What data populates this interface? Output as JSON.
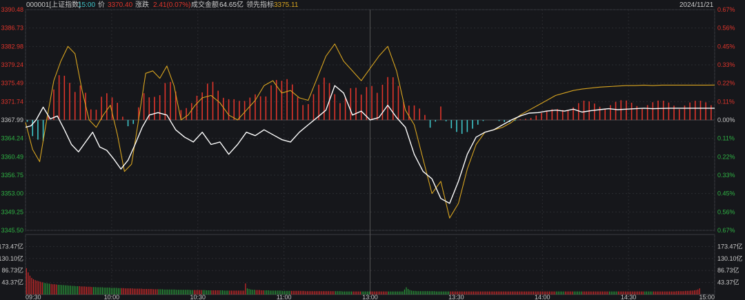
{
  "header": {
    "code_name": "000001[上证指数]",
    "time": "15:00",
    "price_label": "价",
    "price": "3370.40",
    "change_label": "涨跌",
    "change": "2.41(0.07%)",
    "turnover_label": "成交金额",
    "turnover": "64.65亿",
    "lead_label": "领先指标",
    "lead": "3375.11",
    "date": "2024/11/21"
  },
  "colors": {
    "background": "#16171b",
    "up": "#e0352b",
    "down": "#3fc6ca",
    "price_line": "#ffffff",
    "lead_line": "#d9a520",
    "volume_up": "#d62a2a",
    "volume_down": "#2a9a3a"
  },
  "chart_data": {
    "type": "line",
    "title": "000001[上证指数]",
    "prev_close": 3367.99,
    "price_ticks": [
      "3390.48",
      "3386.73",
      "3382.98",
      "3379.24",
      "3375.49",
      "3371.74",
      "3367.99",
      "3364.24",
      "3360.49",
      "3356.75",
      "3353.00",
      "3349.25",
      "3345.50"
    ],
    "pct_ticks": [
      "0.67%",
      "0.56%",
      "0.45%",
      "0.33%",
      "0.22%",
      "0.11%",
      "0.00%",
      "0.11%",
      "0.22%",
      "0.33%",
      "0.45%",
      "0.56%",
      "0.67%"
    ],
    "ylim": [
      3345.5,
      3390.48
    ],
    "volume_ticks": [
      "173.47亿",
      "130.10亿",
      "86.73亿",
      "43.37亿"
    ],
    "volume_ylim": [
      0,
      216.84
    ],
    "x_ticks": [
      "09:30",
      "10:00",
      "10:30",
      "11:00",
      "13:00",
      "13:30",
      "14:00",
      "14:30",
      "15:00"
    ],
    "price_series": {
      "name": "价",
      "points": [
        [
          0,
          3366.5
        ],
        [
          3,
          3366.8
        ],
        [
          6,
          3368.0
        ],
        [
          10,
          3370.6
        ],
        [
          14,
          3368.2
        ],
        [
          18,
          3368.8
        ],
        [
          22,
          3366.0
        ],
        [
          26,
          3363.0
        ],
        [
          30,
          3361.5
        ],
        [
          34,
          3363.5
        ],
        [
          38,
          3365.5
        ],
        [
          42,
          3362.5
        ],
        [
          46,
          3361.8
        ],
        [
          50,
          3360.0
        ],
        [
          54,
          3358.0
        ],
        [
          58,
          3359.8
        ],
        [
          62,
          3363.0
        ],
        [
          66,
          3366.5
        ],
        [
          70,
          3369.0
        ],
        [
          75,
          3369.5
        ],
        [
          80,
          3369.0
        ],
        [
          85,
          3366.0
        ],
        [
          90,
          3364.5
        ],
        [
          95,
          3363.5
        ],
        [
          100,
          3365.5
        ],
        [
          105,
          3363.0
        ],
        [
          110,
          3363.5
        ],
        [
          115,
          3361.0
        ],
        [
          120,
          3363.0
        ],
        [
          125,
          3365.5
        ],
        [
          130,
          3364.8
        ],
        [
          135,
          3366.0
        ],
        [
          140,
          3365.0
        ],
        [
          145,
          3364.0
        ],
        [
          150,
          3363.5
        ],
        [
          155,
          3365.5
        ],
        [
          160,
          3367.0
        ],
        [
          165,
          3368.5
        ],
        [
          170,
          3370.0
        ],
        [
          175,
          3375.0
        ],
        [
          180,
          3373.5
        ],
        [
          185,
          3369.0
        ],
        [
          190,
          3369.8
        ],
        [
          195,
          3368.0
        ],
        [
          200,
          3368.5
        ],
        [
          205,
          3371.0
        ],
        [
          210,
          3368.5
        ],
        [
          215,
          3366.5
        ],
        [
          220,
          3361.0
        ],
        [
          225,
          3357.5
        ],
        [
          230,
          3356.0
        ],
        [
          235,
          3352.0
        ],
        [
          240,
          3351.0
        ],
        [
          245,
          3355.5
        ],
        [
          250,
          3361.0
        ],
        [
          255,
          3364.5
        ],
        [
          260,
          3365.5
        ],
        [
          265,
          3366.0
        ],
        [
          270,
          3367.0
        ],
        [
          275,
          3368.0
        ],
        [
          280,
          3368.8
        ],
        [
          285,
          3369.4
        ],
        [
          290,
          3369.5
        ],
        [
          295,
          3369.8
        ],
        [
          300,
          3370.0
        ],
        [
          305,
          3369.8
        ],
        [
          310,
          3370.2
        ],
        [
          315,
          3369.6
        ],
        [
          320,
          3369.9
        ],
        [
          325,
          3370.1
        ],
        [
          330,
          3370.3
        ],
        [
          335,
          3370.1
        ],
        [
          340,
          3370.2
        ],
        [
          345,
          3370.3
        ],
        [
          350,
          3370.4
        ],
        [
          355,
          3370.3
        ],
        [
          360,
          3370.35
        ],
        [
          365,
          3370.4
        ],
        [
          370,
          3370.4
        ],
        [
          375,
          3370.4
        ],
        [
          380,
          3370.4
        ],
        [
          385,
          3370.4
        ],
        [
          390,
          3370.4
        ]
      ]
    },
    "lead_series": {
      "name": "领先指标",
      "points": [
        [
          0,
          3367.5
        ],
        [
          4,
          3362.0
        ],
        [
          8,
          3359.5
        ],
        [
          12,
          3368.0
        ],
        [
          16,
          3376.0
        ],
        [
          20,
          3380.0
        ],
        [
          24,
          3383.0
        ],
        [
          28,
          3381.5
        ],
        [
          32,
          3374.0
        ],
        [
          36,
          3368.0
        ],
        [
          40,
          3366.5
        ],
        [
          44,
          3369.0
        ],
        [
          48,
          3371.0
        ],
        [
          52,
          3365.0
        ],
        [
          56,
          3357.5
        ],
        [
          60,
          3359.0
        ],
        [
          64,
          3368.0
        ],
        [
          68,
          3377.5
        ],
        [
          72,
          3378.0
        ],
        [
          76,
          3376.5
        ],
        [
          80,
          3379.0
        ],
        [
          84,
          3375.0
        ],
        [
          88,
          3368.0
        ],
        [
          92,
          3369.0
        ],
        [
          96,
          3371.0
        ],
        [
          100,
          3372.5
        ],
        [
          105,
          3373.0
        ],
        [
          110,
          3371.5
        ],
        [
          115,
          3369.0
        ],
        [
          120,
          3368.0
        ],
        [
          125,
          3370.0
        ],
        [
          130,
          3372.0
        ],
        [
          135,
          3375.0
        ],
        [
          140,
          3376.0
        ],
        [
          145,
          3373.5
        ],
        [
          150,
          3374.0
        ],
        [
          155,
          3372.5
        ],
        [
          160,
          3372.0
        ],
        [
          165,
          3376.5
        ],
        [
          170,
          3381.0
        ],
        [
          175,
          3383.5
        ],
        [
          180,
          3380.0
        ],
        [
          185,
          3378.0
        ],
        [
          190,
          3376.0
        ],
        [
          195,
          3378.5
        ],
        [
          200,
          3381.0
        ],
        [
          205,
          3383.0
        ],
        [
          210,
          3378.0
        ],
        [
          215,
          3370.0
        ],
        [
          220,
          3367.0
        ],
        [
          225,
          3360.0
        ],
        [
          230,
          3353.0
        ],
        [
          235,
          3355.5
        ],
        [
          240,
          3348.0
        ],
        [
          245,
          3351.0
        ],
        [
          250,
          3358.0
        ],
        [
          255,
          3363.0
        ],
        [
          260,
          3365.5
        ],
        [
          265,
          3366.0
        ],
        [
          270,
          3366.5
        ],
        [
          275,
          3367.5
        ],
        [
          280,
          3369.0
        ],
        [
          285,
          3370.0
        ],
        [
          290,
          3371.0
        ],
        [
          295,
          3372.0
        ],
        [
          300,
          3373.0
        ],
        [
          305,
          3373.5
        ],
        [
          310,
          3374.0
        ],
        [
          315,
          3374.3
        ],
        [
          320,
          3374.5
        ],
        [
          325,
          3374.7
        ],
        [
          330,
          3374.8
        ],
        [
          335,
          3374.9
        ],
        [
          340,
          3375.0
        ],
        [
          345,
          3375.0
        ],
        [
          350,
          3375.1
        ],
        [
          355,
          3375.0
        ],
        [
          360,
          3375.1
        ],
        [
          365,
          3375.1
        ],
        [
          370,
          3375.1
        ],
        [
          375,
          3375.1
        ],
        [
          380,
          3375.1
        ],
        [
          385,
          3375.1
        ],
        [
          390,
          3375.11
        ]
      ]
    },
    "volume": [
      95,
      80,
      68,
      60,
      55,
      52,
      50,
      48,
      46,
      44,
      42,
      41,
      40,
      39,
      38,
      37,
      37,
      36,
      35,
      35,
      34,
      34,
      33,
      33,
      32,
      32,
      31,
      31,
      30,
      30,
      30,
      29,
      29,
      29,
      28,
      28,
      28,
      27,
      27,
      27,
      26,
      26,
      26,
      26,
      25,
      25,
      25,
      25,
      24,
      24,
      24,
      24,
      23,
      23,
      23,
      23,
      22,
      22,
      22,
      22,
      22,
      21,
      21,
      21,
      21,
      21,
      20,
      20,
      20,
      20,
      20,
      20,
      19,
      19,
      19,
      19,
      19,
      19,
      18,
      18,
      18,
      18,
      18,
      18,
      18,
      17,
      17,
      17,
      17,
      17,
      17,
      17,
      17,
      16,
      16,
      16,
      16,
      16,
      16,
      16,
      16,
      16,
      15,
      15,
      15,
      15,
      15,
      15,
      15,
      15,
      15,
      15,
      14,
      14,
      14,
      14,
      14,
      14,
      14,
      14,
      14,
      14,
      14,
      14,
      40,
      22,
      20,
      18,
      17,
      17,
      16,
      16,
      16,
      15,
      15,
      15,
      15,
      15,
      14,
      14,
      14,
      14,
      14,
      14,
      14,
      13,
      13,
      13,
      13,
      13,
      13,
      13,
      13,
      13,
      13,
      13,
      13,
      13,
      12,
      12,
      12,
      12,
      12,
      12,
      12,
      12,
      12,
      12,
      12,
      12,
      12,
      12,
      12,
      12,
      12,
      12,
      12,
      12,
      12,
      11,
      11,
      11,
      11,
      11,
      11,
      11,
      11,
      11,
      11,
      11,
      11,
      11,
      11,
      11,
      11,
      11,
      11,
      11,
      11,
      11,
      11,
      11,
      11,
      11,
      11,
      11,
      11,
      11,
      11,
      11,
      11,
      11,
      11,
      11,
      18,
      26,
      20,
      16,
      14,
      13,
      13,
      12,
      12,
      12,
      12,
      12,
      12,
      12,
      12,
      12,
      12,
      12,
      11,
      11,
      11,
      11,
      11,
      11,
      11,
      11,
      11,
      11,
      11,
      11,
      11,
      11,
      11,
      11,
      11,
      11,
      11,
      11,
      11,
      11,
      11,
      11,
      11,
      11,
      11,
      11,
      11,
      11,
      11,
      11,
      11,
      11,
      11,
      11,
      11,
      11,
      11,
      11,
      11,
      11,
      11,
      11,
      11,
      11,
      11,
      11,
      11,
      11,
      11,
      11,
      11,
      11,
      11,
      11,
      11,
      11,
      11,
      11,
      11,
      11,
      11,
      11,
      11,
      11,
      11,
      11,
      11,
      11,
      11,
      11,
      11,
      11,
      11,
      11,
      11,
      11,
      11,
      11,
      11,
      11,
      11,
      11,
      11,
      11,
      11,
      11,
      11,
      11,
      11,
      11,
      11,
      11,
      11,
      11,
      11,
      11,
      11,
      11,
      11,
      11,
      11,
      11,
      11,
      11,
      11,
      11,
      11,
      11,
      11,
      11,
      11,
      11,
      11,
      11,
      11,
      11,
      11,
      11,
      11,
      11,
      11,
      11,
      11,
      11,
      11,
      11,
      11,
      11,
      11,
      11,
      11,
      11,
      11,
      11,
      12,
      12,
      12,
      12,
      12,
      13,
      13,
      13,
      14,
      14,
      15,
      16,
      18,
      22
    ]
  }
}
